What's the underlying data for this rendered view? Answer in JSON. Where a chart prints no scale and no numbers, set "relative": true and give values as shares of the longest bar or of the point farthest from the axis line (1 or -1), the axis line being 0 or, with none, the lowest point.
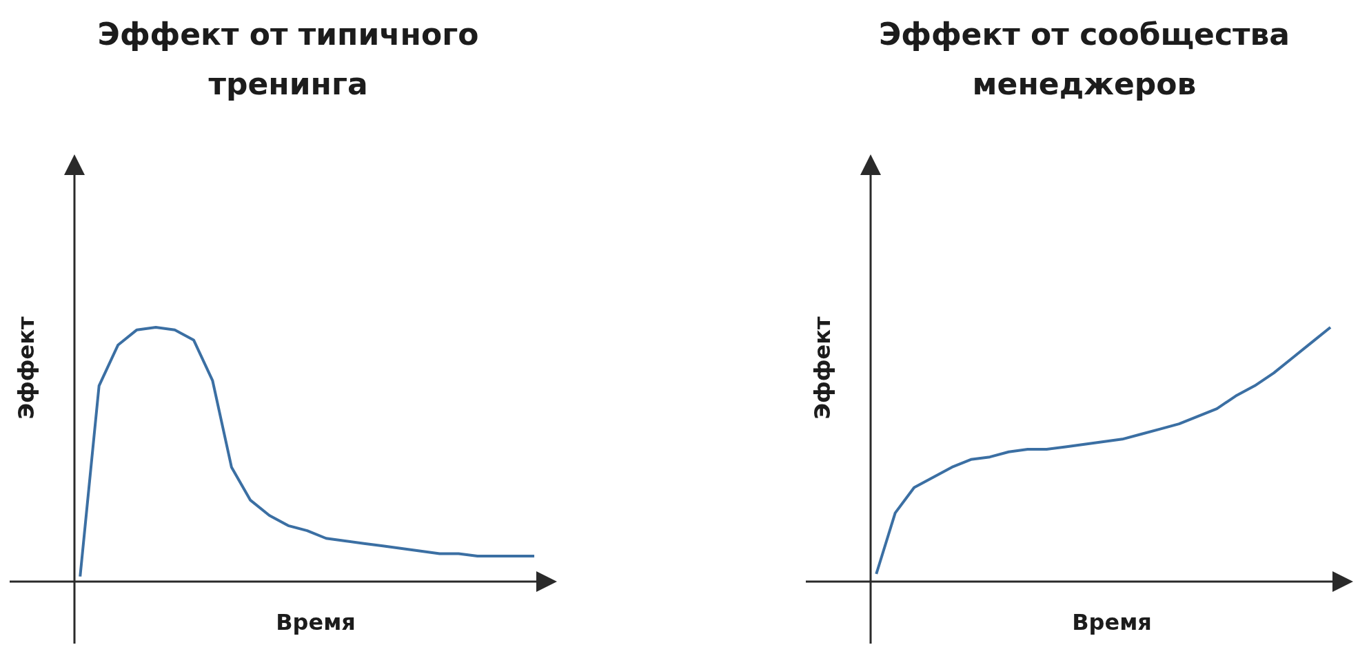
{
  "chart_data": [
    {
      "type": "line",
      "title": "Эффект от типичного тренинга",
      "xlabel": "Время",
      "ylabel": "Эффект",
      "relative": true,
      "categories": [
        null,
        null,
        null,
        null,
        null,
        null,
        null,
        null,
        null,
        null,
        null,
        null,
        null,
        null,
        null,
        null,
        null,
        null,
        null,
        null,
        null,
        null,
        null,
        null,
        null
      ],
      "series": [
        {
          "color": "#3b6fa3",
          "values": [
            0.02,
            0.77,
            0.93,
            0.99,
            1.0,
            0.99,
            0.95,
            0.79,
            0.45,
            0.32,
            0.26,
            0.22,
            0.2,
            0.17,
            0.16,
            0.15,
            0.14,
            0.13,
            0.12,
            0.11,
            0.11,
            0.1,
            0.1,
            0.1,
            0.1
          ]
        }
      ],
      "grid": false,
      "legend": false,
      "marker": "none",
      "line_style": "solid"
    },
    {
      "type": "line",
      "title": "Эффект от сообщества менеджеров",
      "xlabel": "Время",
      "ylabel": "Эффект",
      "relative": true,
      "categories": [
        null,
        null,
        null,
        null,
        null,
        null,
        null,
        null,
        null,
        null,
        null,
        null,
        null,
        null,
        null,
        null,
        null,
        null,
        null,
        null,
        null,
        null,
        null,
        null,
        null
      ],
      "series": [
        {
          "color": "#3b6fa3",
          "values": [
            0.03,
            0.27,
            0.37,
            0.41,
            0.45,
            0.48,
            0.49,
            0.51,
            0.52,
            0.52,
            0.53,
            0.54,
            0.55,
            0.56,
            0.58,
            0.6,
            0.62,
            0.65,
            0.68,
            0.73,
            0.77,
            0.82,
            0.88,
            0.94,
            1.0
          ]
        }
      ],
      "grid": false,
      "legend": false,
      "marker": "none",
      "line_style": "solid"
    }
  ]
}
